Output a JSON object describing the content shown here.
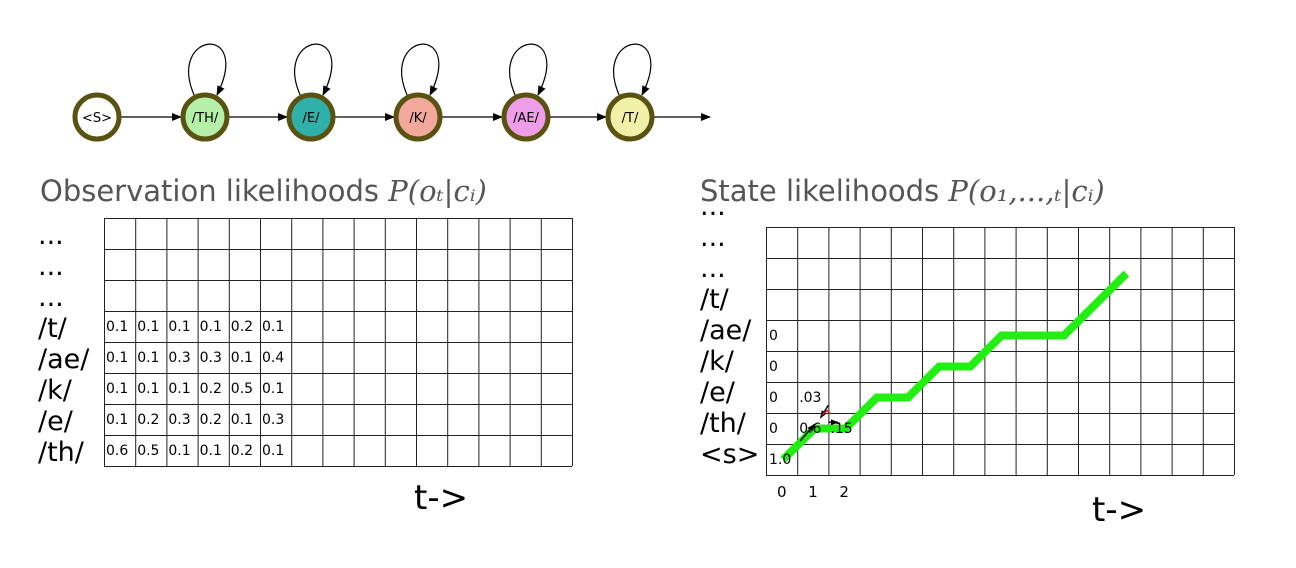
{
  "hmm": {
    "states": [
      {
        "label": "<S>",
        "color": "#ffffff",
        "self_loop": false
      },
      {
        "label": "/TH/",
        "color": "#b5f0a8",
        "self_loop": true
      },
      {
        "label": "/E/",
        "color": "#2fb0a8",
        "self_loop": true
      },
      {
        "label": "/K/",
        "color": "#f2a89a",
        "self_loop": true
      },
      {
        "label": "/AE/",
        "color": "#ee9ee8",
        "self_loop": true
      },
      {
        "label": "/T/",
        "color": "#f0f0a8",
        "self_loop": true
      }
    ],
    "node_border_color": "#5a5210"
  },
  "observation": {
    "title_text": "Observation likelihoods ",
    "title_math": "P(o_t|c_i)",
    "title_math_display": "P(oₜ|cᵢ)",
    "row_labels": [
      "...",
      "...",
      "...",
      "/t/",
      "/ae/",
      "/k/",
      "/e/",
      "/th/"
    ],
    "rows": [
      [],
      [],
      [],
      [
        "0.1",
        "0.1",
        "0.1",
        "0.1",
        "0.2",
        "0.1"
      ],
      [
        "0.1",
        "0.1",
        "0.3",
        "0.3",
        "0.1",
        "0.4"
      ],
      [
        "0.1",
        "0.1",
        "0.1",
        "0.2",
        "0.5",
        "0.1"
      ],
      [
        "0.1",
        "0.2",
        "0.3",
        "0.2",
        "0.1",
        "0.3"
      ],
      [
        "0.6",
        "0.5",
        "0.1",
        "0.1",
        "0.2",
        "0.1"
      ]
    ],
    "time_label": "t->"
  },
  "state": {
    "title_text": "State likelihoods ",
    "title_math_display": "P(o₁,...,ₜ|cᵢ)",
    "row_labels": [
      "...",
      "...",
      "...",
      "/t/",
      "/ae/",
      "/k/",
      "/e/",
      "/th/",
      "<s>"
    ],
    "first_col_values": [
      "0",
      "0",
      "0",
      "0",
      "1.0"
    ],
    "cell_values": [
      {
        "text": ".03",
        "row": "/e/",
        "col": 1
      },
      {
        "text": "0.6",
        "row": "/th/",
        "col": 1
      },
      {
        "text": ".15",
        "row": "/th/",
        "col": 2
      }
    ],
    "col_numbers": [
      "0",
      "1",
      "2"
    ],
    "time_label": "t->",
    "path_color": "#22ee11",
    "path": [
      {
        "t": 0.0,
        "state": 0.0
      },
      {
        "t": 1.0,
        "state": 1.0
      },
      {
        "t": 2.0,
        "state": 1.0
      },
      {
        "t": 3.0,
        "state": 2.0
      },
      {
        "t": 4.0,
        "state": 2.0
      },
      {
        "t": 5.0,
        "state": 3.0
      },
      {
        "t": 6.0,
        "state": 3.0
      },
      {
        "t": 7.0,
        "state": 4.0
      },
      {
        "t": 9.0,
        "state": 4.0
      },
      {
        "t": 10.0,
        "state": 5.0
      },
      {
        "t": 11.0,
        "state": 6.0
      }
    ]
  }
}
